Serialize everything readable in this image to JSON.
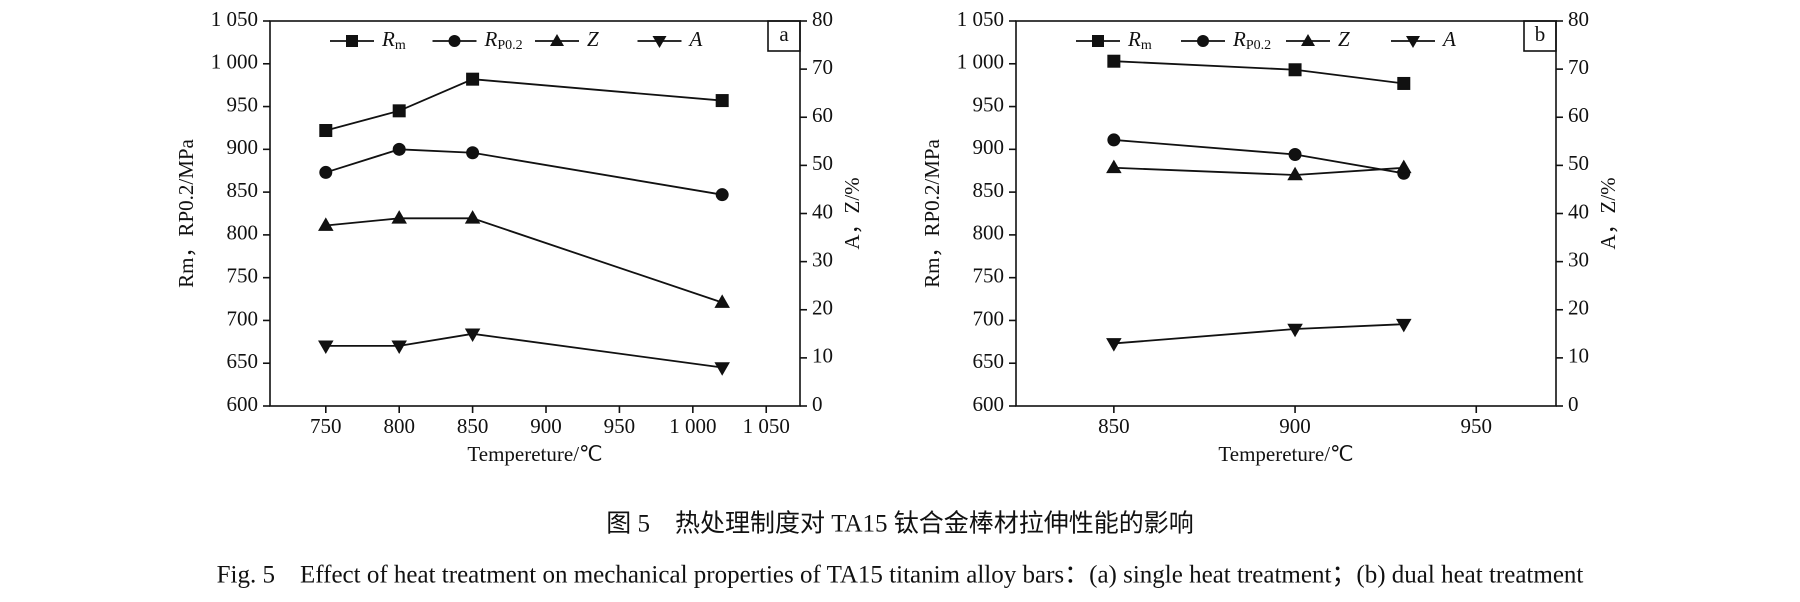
{
  "figure_title": "图 5　热处理制度对 TA15 钛合金棒材拉伸性能的影响",
  "caption_en": "Fig. 5　Effect of heat treatment on mechanical properties of TA15 titanim alloy bars：(a) single heat treatment；(b) dual heat treatment",
  "chart_data": [
    {
      "type": "line",
      "panel_label": "a",
      "x_label": "Tempereture/℃",
      "y_label": "Rm，RP0.2/MPa",
      "y2_label": "A，Z/%",
      "x": [
        750,
        800,
        850,
        1020
      ],
      "xlim": [
        712,
        1073
      ],
      "xticks": [
        750,
        800,
        850,
        900,
        950,
        {
          "value": 1000,
          "label": "1 000"
        },
        {
          "value": 1050,
          "label": "1 050"
        }
      ],
      "ylim": [
        600,
        1050
      ],
      "yticks": [
        600,
        650,
        700,
        750,
        800,
        850,
        900,
        950,
        {
          "value": 1000,
          "label": "1 000"
        },
        {
          "value": 1050,
          "label": "1 050"
        }
      ],
      "y2lim": [
        0,
        80
      ],
      "y2ticks": [
        0,
        10,
        20,
        30,
        40,
        50,
        60,
        70,
        80
      ],
      "legend": "upper center",
      "series": [
        {
          "name": "Rm",
          "color": "#111111",
          "marker": "square",
          "values": [
            922,
            945,
            982,
            957
          ]
        },
        {
          "name": "RP0.2",
          "color": "#111111",
          "marker": "circle",
          "values": [
            873,
            900,
            896,
            847
          ]
        },
        {
          "name": "Z",
          "color": "#111111",
          "marker": "triangle-up",
          "axis": "y2",
          "values": [
            37.5,
            39,
            39,
            21.5
          ]
        },
        {
          "name": "A",
          "color": "#111111",
          "marker": "triangle-down",
          "axis": "y2",
          "values": [
            12.5,
            12.5,
            15,
            8
          ]
        }
      ]
    },
    {
      "type": "line",
      "panel_label": "b",
      "x_label": "Tempereture/℃",
      "y_label": "Rm，RP0.2/MPa",
      "y2_label": "A，Z/%",
      "x": [
        850,
        900,
        930
      ],
      "xlim": [
        823,
        972
      ],
      "xticks": [
        850,
        900,
        950
      ],
      "ylim": [
        600,
        1050
      ],
      "yticks": [
        600,
        650,
        700,
        750,
        800,
        850,
        900,
        950,
        {
          "value": 1000,
          "label": "1 000"
        },
        {
          "value": 1050,
          "label": "1 050"
        }
      ],
      "y2lim": [
        0,
        80
      ],
      "y2ticks": [
        0,
        10,
        20,
        30,
        40,
        50,
        60,
        70,
        80
      ],
      "legend": "upper center",
      "series": [
        {
          "name": "Rm",
          "color": "#111111",
          "marker": "square",
          "values": [
            1003,
            993,
            977
          ]
        },
        {
          "name": "RP0.2",
          "color": "#111111",
          "marker": "circle",
          "values": [
            911,
            894,
            872
          ]
        },
        {
          "name": "Z",
          "color": "#111111",
          "marker": "triangle-up",
          "axis": "y2",
          "values": [
            49.5,
            48,
            49.5
          ]
        },
        {
          "name": "A",
          "color": "#111111",
          "marker": "triangle-down",
          "axis": "y2",
          "values": [
            13,
            16,
            17
          ]
        }
      ]
    }
  ]
}
